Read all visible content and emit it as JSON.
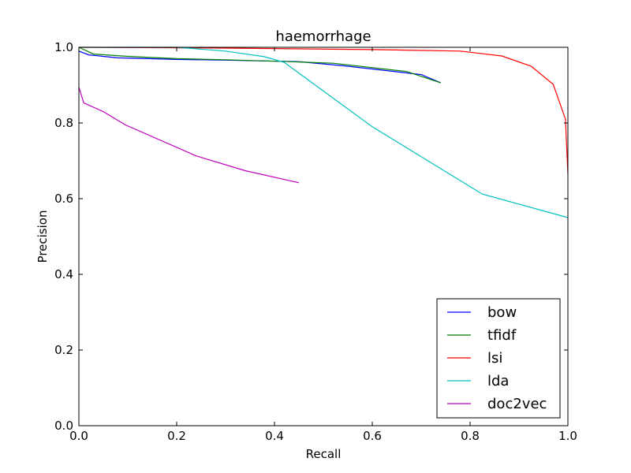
{
  "chart_data": {
    "type": "line",
    "title": "haemorrhage",
    "xlabel": "Recall",
    "ylabel": "Precision",
    "xlim": [
      0.0,
      1.0
    ],
    "ylim": [
      0.0,
      1.0
    ],
    "xticks": [
      "0.0",
      "0.2",
      "0.4",
      "0.6",
      "0.8",
      "1.0"
    ],
    "yticks": [
      "0.0",
      "0.2",
      "0.4",
      "0.6",
      "0.8",
      "1.0"
    ],
    "grid": false,
    "legend_position": "bottom-right",
    "series": [
      {
        "name": "bow",
        "color": "#0000ff",
        "points": [
          [
            0.0,
            0.99
          ],
          [
            0.02,
            0.98
          ],
          [
            0.08,
            0.972
          ],
          [
            0.2,
            0.968
          ],
          [
            0.3,
            0.966
          ],
          [
            0.45,
            0.962
          ],
          [
            0.55,
            0.95
          ],
          [
            0.7,
            0.928
          ],
          [
            0.74,
            0.906
          ]
        ]
      },
      {
        "name": "tfidf",
        "color": "#008000",
        "points": [
          [
            0.0,
            1.0
          ],
          [
            0.03,
            0.982
          ],
          [
            0.1,
            0.976
          ],
          [
            0.2,
            0.97
          ],
          [
            0.3,
            0.967
          ],
          [
            0.43,
            0.962
          ],
          [
            0.52,
            0.958
          ],
          [
            0.67,
            0.936
          ],
          [
            0.74,
            0.906
          ]
        ]
      },
      {
        "name": "lsi",
        "color": "#ff0000",
        "points": [
          [
            0.0,
            1.0
          ],
          [
            0.3,
            0.998
          ],
          [
            0.6,
            0.994
          ],
          [
            0.78,
            0.99
          ],
          [
            0.865,
            0.977
          ],
          [
            0.925,
            0.95
          ],
          [
            0.97,
            0.902
          ],
          [
            0.995,
            0.81
          ],
          [
            1.0,
            0.665
          ]
        ]
      },
      {
        "name": "lda",
        "color": "#00bfbf",
        "points": [
          [
            0.0,
            1.0
          ],
          [
            0.2,
            1.0
          ],
          [
            0.3,
            0.99
          ],
          [
            0.38,
            0.975
          ],
          [
            0.42,
            0.96
          ],
          [
            0.6,
            0.79
          ],
          [
            0.825,
            0.612
          ],
          [
            1.0,
            0.55
          ]
        ]
      },
      {
        "name": "doc2vec",
        "color": "#bf00bf",
        "points": [
          [
            0.0,
            0.895
          ],
          [
            0.01,
            0.853
          ],
          [
            0.05,
            0.83
          ],
          [
            0.095,
            0.795
          ],
          [
            0.24,
            0.713
          ],
          [
            0.34,
            0.674
          ],
          [
            0.45,
            0.642
          ]
        ]
      }
    ]
  }
}
